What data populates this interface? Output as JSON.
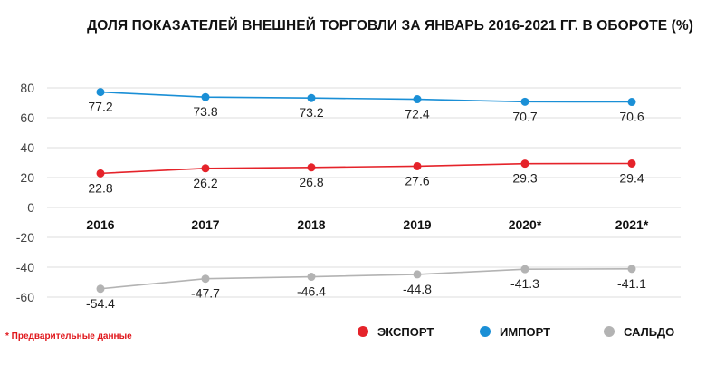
{
  "chart_data": {
    "type": "line",
    "title": "ДОЛЯ ПОКАЗАТЕЛЕЙ ВНЕШНЕЙ ТОРГОВЛИ ЗА ЯНВАРЬ 2016-2021 ГГ. В ОБОРОТЕ (%)",
    "categories": [
      "2016",
      "2017",
      "2018",
      "2019",
      "2020*",
      "2021*"
    ],
    "series": [
      {
        "name": "ИМПОРТ",
        "color": "#1a8fd6",
        "values": [
          77.2,
          73.8,
          73.2,
          72.4,
          70.7,
          70.6
        ],
        "labels": [
          "77.2",
          "73.8",
          "73.2",
          "72.4",
          "70.7",
          "70.6"
        ]
      },
      {
        "name": "ЭКСПОРТ",
        "color": "#e5232a",
        "values": [
          22.8,
          26.2,
          26.8,
          27.6,
          29.3,
          29.4
        ],
        "labels": [
          "22.8",
          "26.2",
          "26.8",
          "27.6",
          "29.3",
          "29.4"
        ]
      },
      {
        "name": "САЛЬДО",
        "color": "#b3b3b3",
        "values": [
          -54.4,
          -47.7,
          -46.4,
          -44.8,
          -41.3,
          -41.1
        ],
        "labels": [
          "-54.4",
          "-47.7",
          "-46.4",
          "-44.8",
          "-41.3",
          "-41.1"
        ]
      }
    ],
    "yticks": [
      "80",
      "60",
      "40",
      "20",
      "0",
      "-20",
      "-40",
      "-60"
    ],
    "ylim": [
      -60,
      80
    ],
    "grid": true,
    "legend": {
      "placement": "bottom-right",
      "order": [
        "ЭКСПОРТ",
        "ИМПОРТ",
        "САЛЬДО"
      ]
    },
    "footnote": "* Предварительные данные"
  }
}
